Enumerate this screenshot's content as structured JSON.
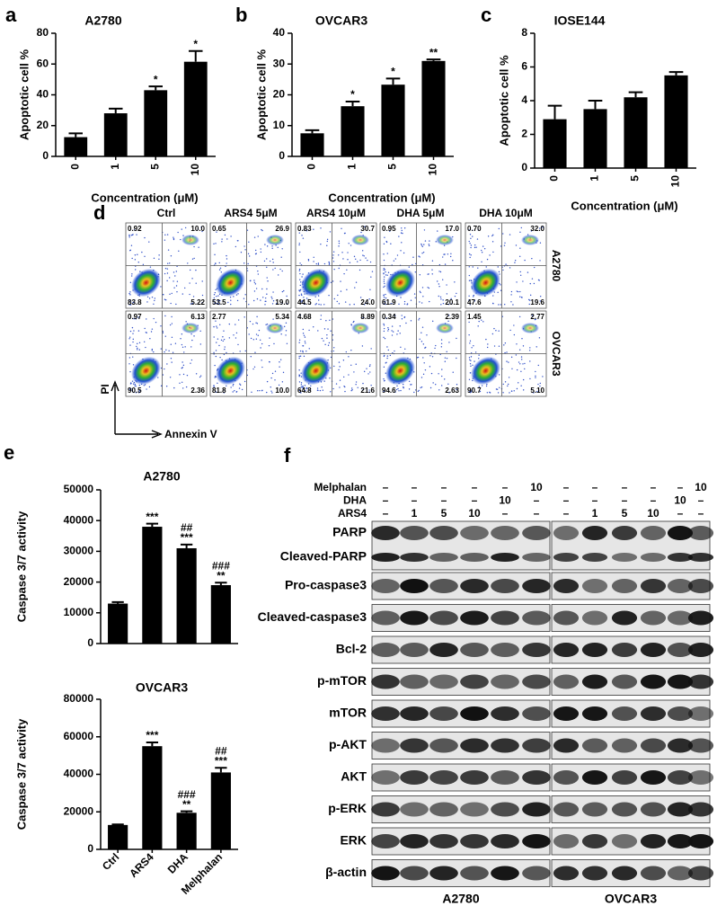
{
  "chart_data": [
    {
      "type": "bar",
      "panel": "a",
      "title": "A2780",
      "ylabel": "Apoptotic cell %",
      "xlabel": "Concentration (μM)",
      "categories": [
        "0",
        "1",
        "5",
        "10"
      ],
      "values": [
        12.5,
        28,
        43,
        61.5
      ],
      "errors": [
        2.5,
        3,
        2.5,
        7
      ],
      "annotations": [
        null,
        null,
        [
          "*"
        ],
        [
          "*"
        ]
      ],
      "color": "#000000",
      "ylim": [
        0,
        80
      ],
      "yticks": [
        0,
        20,
        40,
        60,
        80
      ]
    },
    {
      "type": "bar",
      "panel": "b",
      "title": "OVCAR3",
      "ylabel": "Apoptotic cell %",
      "xlabel": "Concentration (μM)",
      "categories": [
        "0",
        "1",
        "5",
        "10"
      ],
      "values": [
        7.5,
        16.3,
        23.3,
        31
      ],
      "errors": [
        1,
        1.5,
        2,
        0.5
      ],
      "annotations": [
        null,
        [
          "*"
        ],
        [
          "*"
        ],
        [
          "**"
        ]
      ],
      "color": "#000000",
      "ylim": [
        0,
        40
      ],
      "yticks": [
        0,
        10,
        20,
        30,
        40
      ]
    },
    {
      "type": "bar",
      "panel": "c",
      "title": "IOSE144",
      "ylabel": "Apoptotic cell %",
      "xlabel": "Concentration (μM)",
      "categories": [
        "0",
        "1",
        "5",
        "10"
      ],
      "values": [
        2.9,
        3.5,
        4.2,
        5.5
      ],
      "errors": [
        0.8,
        0.5,
        0.3,
        0.2
      ],
      "color": "#000000",
      "ylim": [
        0,
        8
      ],
      "yticks": [
        0,
        2,
        4,
        6,
        8
      ]
    },
    {
      "type": "bar",
      "panel": "e",
      "title": "A2780",
      "ylabel": "Caspase 3/7 activity",
      "categories": [
        null,
        null,
        null,
        null
      ],
      "values": [
        13000,
        38000,
        31000,
        19000
      ],
      "errors": [
        500,
        1000,
        1200,
        800
      ],
      "annotations": [
        null,
        [
          "***"
        ],
        [
          "##",
          "***"
        ],
        [
          "###",
          "**"
        ]
      ],
      "color": "#000000",
      "ylim": [
        0,
        50000
      ],
      "yticks": [
        0,
        10000,
        20000,
        30000,
        40000,
        50000
      ]
    },
    {
      "type": "bar",
      "title": "OVCAR3",
      "ylabel": "Caspase 3/7 activity",
      "categories": [
        "Ctrl",
        "ARS4",
        "DHA",
        "Melphalan"
      ],
      "values": [
        13000,
        55000,
        19500,
        41000
      ],
      "errors": [
        300,
        2000,
        800,
        2500
      ],
      "annotations": [
        null,
        [
          "***"
        ],
        [
          "###",
          "**"
        ],
        [
          "##",
          "***"
        ]
      ],
      "color": "#000000",
      "ylim": [
        0,
        80000
      ],
      "yticks": [
        0,
        20000,
        40000,
        60000,
        80000
      ]
    }
  ],
  "flow": {
    "panel": "d",
    "columns": [
      "Ctrl",
      "ARS4 5μM",
      "ARS4 10μM",
      "DHA 5μM",
      "DHA 10μM"
    ],
    "rows": [
      "A2780",
      "OVCAR3"
    ],
    "ylabel": "PI",
    "xlabel": "Annexin V",
    "quadrants": [
      [
        [
          "0.92",
          "10.0",
          "83.8",
          "5.22"
        ],
        [
          "0.65",
          "26.9",
          "53.5",
          "19.0"
        ],
        [
          "0.83",
          "30.7",
          "44.5",
          "24.0"
        ],
        [
          "0.95",
          "17.0",
          "61.9",
          "20.1"
        ],
        [
          "0.70",
          "32.0",
          "47.6",
          "19.6"
        ]
      ],
      [
        [
          "0.97",
          "6.13",
          "90.5",
          "2.36"
        ],
        [
          "2.77",
          "5.34",
          "81.8",
          "10.0"
        ],
        [
          "4.68",
          "8.89",
          "64.8",
          "21.6"
        ],
        [
          "0.34",
          "2.39",
          "94.6",
          "2.63"
        ],
        [
          "1.45",
          "2.77",
          "90.7",
          "5.10"
        ]
      ]
    ]
  },
  "western": {
    "panel": "f",
    "treatments": [
      {
        "name": "Melphalan",
        "doses": [
          "–",
          "–",
          "–",
          "–",
          "–",
          "10"
        ]
      },
      {
        "name": "DHA",
        "doses": [
          "–",
          "–",
          "–",
          "–",
          "10",
          "–"
        ]
      },
      {
        "name": "ARS4",
        "doses": [
          "–",
          "1",
          "5",
          "10",
          "–",
          "–"
        ]
      }
    ],
    "proteins": [
      "PARP",
      "Cleaved-PARP",
      "Pro-caspase3",
      "Cleaved-caspase3",
      "Bcl-2",
      "p-mTOR",
      "mTOR",
      "p-AKT",
      "AKT",
      "p-ERK",
      "ERK",
      "β-actin"
    ],
    "blots": [
      "A2780",
      "OVCAR3"
    ]
  }
}
